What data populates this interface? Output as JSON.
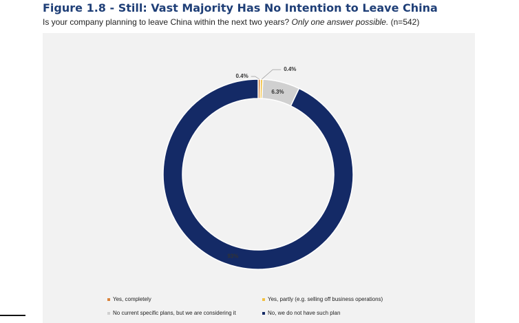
{
  "header": {
    "title": "Figure 1.8 - Still: Vast Majority Has No Intention to Leave China",
    "subtitle_main": "Is your company planning to leave China within the next two years?",
    "subtitle_italic": "Only one answer possible.",
    "subtitle_n": "(n=542)"
  },
  "chart_data": {
    "type": "pie",
    "variant": "donut",
    "categories": [
      "Yes, completely",
      "Yes, partly (e.g. selling off business operations)",
      "No current specific plans, but we are considering it",
      "No, we do not have such plan"
    ],
    "values": [
      0.4,
      0.4,
      6.3,
      93
    ],
    "labels": [
      "0.4%",
      "0.4%",
      "6.3%",
      "93%"
    ],
    "colors": [
      "#d9833b",
      "#f2c142",
      "#d0d0d0",
      "#142a66"
    ],
    "legend_labels": [
      "Yes, completely",
      "Yes, partly (e.g. selling off business operations)",
      "No current specific plans, but we are considering it",
      "No, we do not have such plan"
    ],
    "legend_position": "bottom"
  }
}
